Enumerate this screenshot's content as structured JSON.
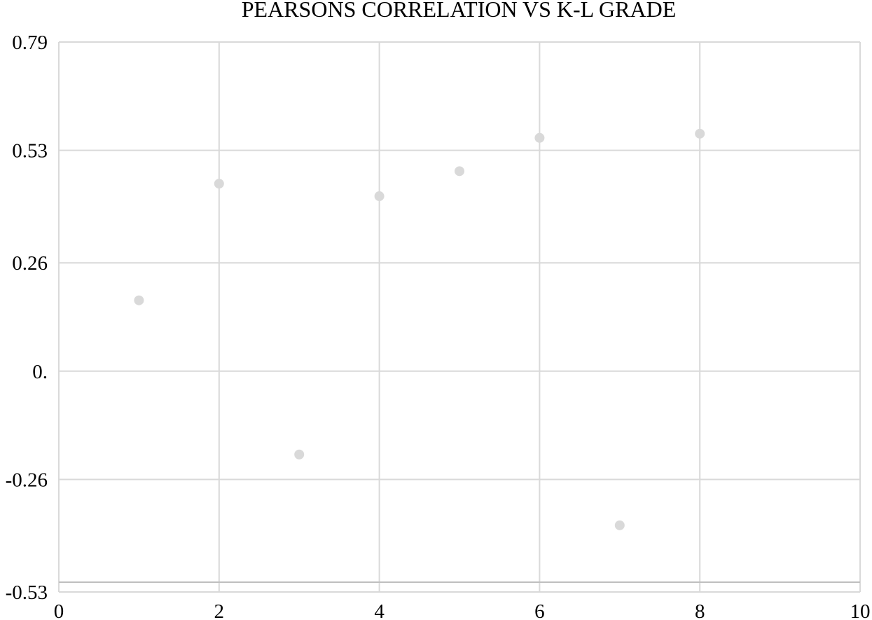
{
  "chart_data": {
    "type": "scatter",
    "title": "PEARSONS CORRELATION VS K-L GRADE",
    "xlabel": "",
    "ylabel": "",
    "xlim": [
      0,
      10
    ],
    "ylim": [
      -0.53,
      0.79
    ],
    "x_ticks": [
      0,
      2,
      4,
      6,
      8,
      10
    ],
    "x_tick_labels": [
      "0",
      "2",
      "4",
      "6",
      "8",
      "10"
    ],
    "y_ticks": [
      0.79,
      0.53,
      0.26,
      0,
      -0.26,
      -0.53
    ],
    "y_tick_labels": [
      "0.79",
      "0.53",
      "0.26",
      "0.",
      "-0.26",
      "-0.53"
    ],
    "grid": true,
    "series": [
      {
        "x": [
          1,
          2,
          3,
          4,
          5,
          6,
          7,
          8
        ],
        "y": [
          0.17,
          0.45,
          -0.2,
          0.42,
          0.48,
          0.56,
          -0.37,
          0.57
        ]
      }
    ],
    "colors": {
      "marker": "#d9d9d9",
      "grid": "#d9d9d9",
      "axis": "#bfbfbf"
    }
  }
}
